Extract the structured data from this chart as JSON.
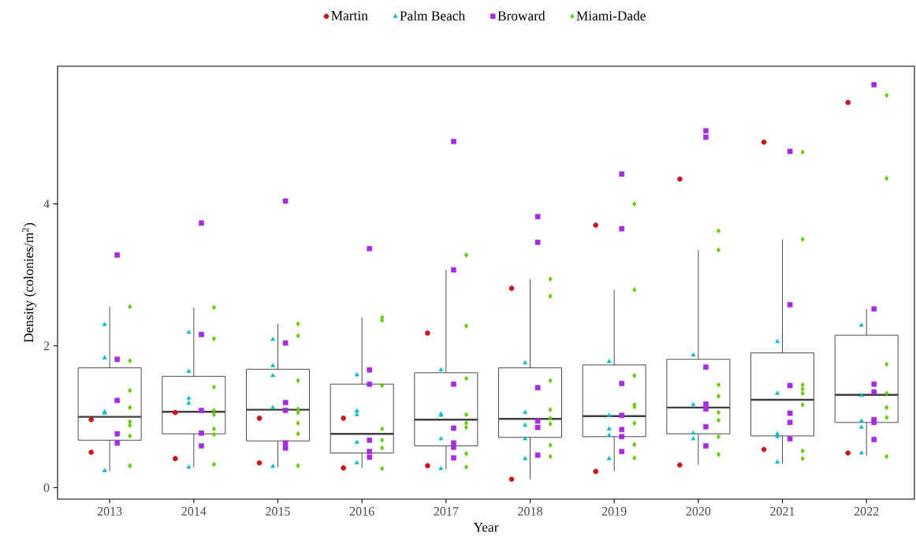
{
  "chart_data": {
    "type": "box",
    "xlabel": "Year",
    "ylabel": "Density (colonies/m$^{2}$)",
    "xlim": [
      2012.38,
      2022.57
    ],
    "xticks": [
      2013,
      2014,
      2015,
      2016,
      2017,
      2018,
      2019,
      2020,
      2021,
      2022
    ],
    "ylim": [
      -0.16,
      5.94
    ],
    "yticks": [
      0,
      2,
      4
    ],
    "grid": false,
    "legend": "top",
    "series": [
      {
        "color": "#404040",
        "x": [
          2013,
          2014,
          2015,
          2016,
          2017,
          2018,
          2019,
          2020,
          2021,
          2022
        ],
        "boxes": [
          {
            "low": 0.23,
            "q1": 0.67,
            "median": 1.0,
            "q3": 1.69,
            "high": 2.55
          },
          {
            "low": 0.29,
            "q1": 0.76,
            "median": 1.07,
            "q3": 1.57,
            "high": 2.54
          },
          {
            "low": 0.29,
            "q1": 0.66,
            "median": 1.1,
            "q3": 1.67,
            "high": 2.31
          },
          {
            "low": 0.28,
            "q1": 0.49,
            "median": 0.76,
            "q3": 1.46,
            "high": 2.4
          },
          {
            "low": 0.26,
            "q1": 0.59,
            "median": 0.96,
            "q3": 1.62,
            "high": 3.07
          },
          {
            "low": 0.12,
            "q1": 0.71,
            "median": 0.97,
            "q3": 1.69,
            "high": 2.94
          },
          {
            "low": 0.23,
            "q1": 0.72,
            "median": 1.01,
            "q3": 1.73,
            "high": 2.79
          },
          {
            "low": 0.32,
            "q1": 0.76,
            "median": 1.13,
            "q3": 1.81,
            "high": 3.35
          },
          {
            "low": 0.34,
            "q1": 0.73,
            "median": 1.24,
            "q3": 1.9,
            "high": 3.5
          },
          {
            "low": 0.45,
            "q1": 0.92,
            "median": 1.31,
            "q3": 2.15,
            "high": 2.52
          }
        ]
      },
      {
        "name": "Martin",
        "type": "scatter",
        "marker": "circle",
        "color": "#c8161d",
        "x": [
          2012.78,
          2012.78,
          2013.78,
          2013.78,
          2014.78,
          2014.78,
          2015.78,
          2015.78,
          2016.78,
          2016.78,
          2017.78,
          2017.78,
          2018.78,
          2018.78,
          2019.78,
          2019.78,
          2020.78,
          2020.78,
          2021.78,
          2021.78
        ],
        "values": [
          0.96,
          0.5,
          1.06,
          0.41,
          0.98,
          0.35,
          0.98,
          0.28,
          2.18,
          0.31,
          2.81,
          0.12,
          3.7,
          0.23,
          4.35,
          0.32,
          4.87,
          0.54,
          5.43,
          0.49
        ]
      },
      {
        "name": "Palm Beach",
        "type": "scatter",
        "marker": "triangle",
        "color": "#00bfc4",
        "x": [
          2012.94,
          2012.94,
          2012.94,
          2012.94,
          2012.94,
          2013.94,
          2013.94,
          2013.94,
          2013.94,
          2013.94,
          2014.94,
          2014.94,
          2014.94,
          2014.94,
          2014.94,
          2015.94,
          2015.94,
          2015.94,
          2015.94,
          2015.94,
          2016.94,
          2016.94,
          2016.94,
          2016.94,
          2016.94,
          2017.94,
          2017.94,
          2017.94,
          2017.94,
          2017.94,
          2018.94,
          2018.94,
          2018.94,
          2018.94,
          2018.94,
          2019.94,
          2019.94,
          2019.94,
          2019.94,
          2020.94,
          2020.94,
          2020.94,
          2020.94,
          2020.94,
          2021.94,
          2021.94,
          2021.94,
          2021.94,
          2021.94
        ],
        "values": [
          2.3,
          1.83,
          1.07,
          1.05,
          0.24,
          2.19,
          1.64,
          1.26,
          1.19,
          0.29,
          2.09,
          1.72,
          1.58,
          1.13,
          0.3,
          1.59,
          1.08,
          1.03,
          0.64,
          0.35,
          1.66,
          1.04,
          1.02,
          0.69,
          0.27,
          1.76,
          1.06,
          0.88,
          0.69,
          0.41,
          1.78,
          1.02,
          0.83,
          0.74,
          0.41,
          1.87,
          1.17,
          0.77,
          0.69,
          2.06,
          1.33,
          0.76,
          0.72,
          0.36,
          2.29,
          1.3,
          0.94,
          0.85,
          0.49
        ]
      },
      {
        "name": "Broward",
        "type": "scatter",
        "marker": "square",
        "color": "#a52de0",
        "x": [
          2013.09,
          2013.09,
          2013.09,
          2013.09,
          2013.09,
          2014.09,
          2014.09,
          2014.09,
          2014.09,
          2014.09,
          2015.09,
          2015.09,
          2015.09,
          2015.09,
          2015.09,
          2015.09,
          2016.09,
          2016.09,
          2016.09,
          2016.09,
          2016.09,
          2016.09,
          2017.09,
          2017.09,
          2017.09,
          2017.09,
          2017.09,
          2017.09,
          2017.09,
          2018.09,
          2018.09,
          2018.09,
          2018.09,
          2018.09,
          2018.09,
          2019.09,
          2019.09,
          2019.09,
          2019.09,
          2019.09,
          2019.09,
          2019.09,
          2020.09,
          2020.09,
          2020.09,
          2020.09,
          2020.09,
          2020.09,
          2020.09,
          2021.09,
          2021.09,
          2021.09,
          2021.09,
          2021.09,
          2021.09,
          2022.09,
          2022.09,
          2022.09,
          2022.09,
          2022.09,
          2022.09,
          2022.09
        ],
        "values": [
          3.28,
          1.81,
          1.23,
          0.76,
          0.63,
          3.73,
          2.16,
          1.09,
          0.77,
          0.59,
          4.04,
          2.04,
          1.2,
          1.09,
          0.63,
          0.56,
          3.37,
          1.66,
          1.46,
          0.67,
          0.51,
          0.43,
          4.88,
          3.07,
          1.46,
          0.84,
          0.63,
          0.57,
          0.42,
          3.82,
          3.46,
          1.41,
          0.94,
          0.85,
          0.46,
          4.42,
          3.65,
          1.47,
          1.02,
          0.82,
          0.72,
          0.51,
          5.03,
          4.94,
          1.7,
          1.18,
          1.11,
          0.86,
          0.59,
          4.74,
          2.58,
          1.44,
          1.05,
          0.92,
          0.69,
          5.68,
          2.52,
          1.46,
          1.35,
          0.96,
          0.92,
          0.68
        ]
      },
      {
        "name": "Miami-Dade",
        "type": "scatter",
        "marker": "diamond",
        "color": "#66cc00",
        "x": [
          2013.24,
          2013.24,
          2013.24,
          2013.24,
          2013.24,
          2013.24,
          2013.24,
          2013.24,
          2014.24,
          2014.24,
          2014.24,
          2014.24,
          2014.24,
          2014.24,
          2014.24,
          2014.24,
          2015.24,
          2015.24,
          2015.24,
          2015.24,
          2015.24,
          2015.24,
          2015.24,
          2015.24,
          2016.24,
          2016.24,
          2016.24,
          2016.24,
          2016.24,
          2016.24,
          2016.24,
          2017.24,
          2017.24,
          2017.24,
          2017.24,
          2017.24,
          2017.24,
          2017.24,
          2017.24,
          2018.24,
          2018.24,
          2018.24,
          2018.24,
          2018.24,
          2018.24,
          2018.24,
          2018.24,
          2019.24,
          2019.24,
          2019.24,
          2019.24,
          2019.24,
          2019.24,
          2019.24,
          2019.24,
          2020.24,
          2020.24,
          2020.24,
          2020.24,
          2020.24,
          2020.24,
          2020.24,
          2020.24,
          2021.24,
          2021.24,
          2021.24,
          2021.24,
          2021.24,
          2021.24,
          2021.24,
          2021.24,
          2022.24,
          2022.24,
          2022.24,
          2022.24,
          2022.24,
          2022.24,
          2022.24
        ],
        "values": [
          2.55,
          1.79,
          1.37,
          1.13,
          0.93,
          0.88,
          0.73,
          0.31,
          2.54,
          2.1,
          1.42,
          1.09,
          1.03,
          0.83,
          0.75,
          0.33,
          2.31,
          2.14,
          1.51,
          1.11,
          1.06,
          0.91,
          0.76,
          0.31,
          2.4,
          2.36,
          1.44,
          0.83,
          0.67,
          0.56,
          0.27,
          3.28,
          2.28,
          1.54,
          1.03,
          0.91,
          0.85,
          0.48,
          0.29,
          2.94,
          2.7,
          1.51,
          1.1,
          0.98,
          0.9,
          0.6,
          0.44,
          4.0,
          2.79,
          1.58,
          1.17,
          1.14,
          0.91,
          0.61,
          0.42,
          3.62,
          3.35,
          1.45,
          1.29,
          1.06,
          0.95,
          0.72,
          0.47,
          4.73,
          3.5,
          1.45,
          1.39,
          1.33,
          1.17,
          0.52,
          0.41,
          5.53,
          4.36,
          1.74,
          1.33,
          1.13,
          0.99,
          0.44
        ]
      }
    ]
  }
}
